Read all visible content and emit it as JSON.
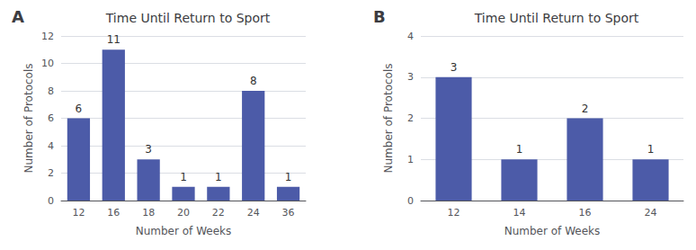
{
  "chart_data": [
    {
      "type": "bar",
      "title": "Time Until Return to Sport",
      "annotations": [
        "A"
      ],
      "categories": [
        "12",
        "16",
        "18",
        "20",
        "22",
        "24",
        "36"
      ],
      "values": [
        6,
        11,
        3,
        1,
        1,
        8,
        1
      ],
      "color": "#4C5BA8",
      "xlabel": "Number of Weeks",
      "ylabel": "Number of Protocols",
      "ylim": [
        0,
        12
      ],
      "yticks": [
        0,
        2,
        4,
        6,
        8,
        10,
        12
      ],
      "grid": true,
      "data_labels": true
    },
    {
      "type": "bar",
      "title": "Time Until Return to Sport",
      "annotations": [
        "B"
      ],
      "categories": [
        "12",
        "14",
        "16",
        "24"
      ],
      "values": [
        3,
        1,
        2,
        1
      ],
      "color": "#4C5BA8",
      "xlabel": "Number of Weeks",
      "ylabel": "Number of Protocols",
      "ylim": [
        0,
        4
      ],
      "yticks": [
        0,
        1,
        2,
        3,
        4
      ],
      "grid": true,
      "data_labels": true
    }
  ]
}
